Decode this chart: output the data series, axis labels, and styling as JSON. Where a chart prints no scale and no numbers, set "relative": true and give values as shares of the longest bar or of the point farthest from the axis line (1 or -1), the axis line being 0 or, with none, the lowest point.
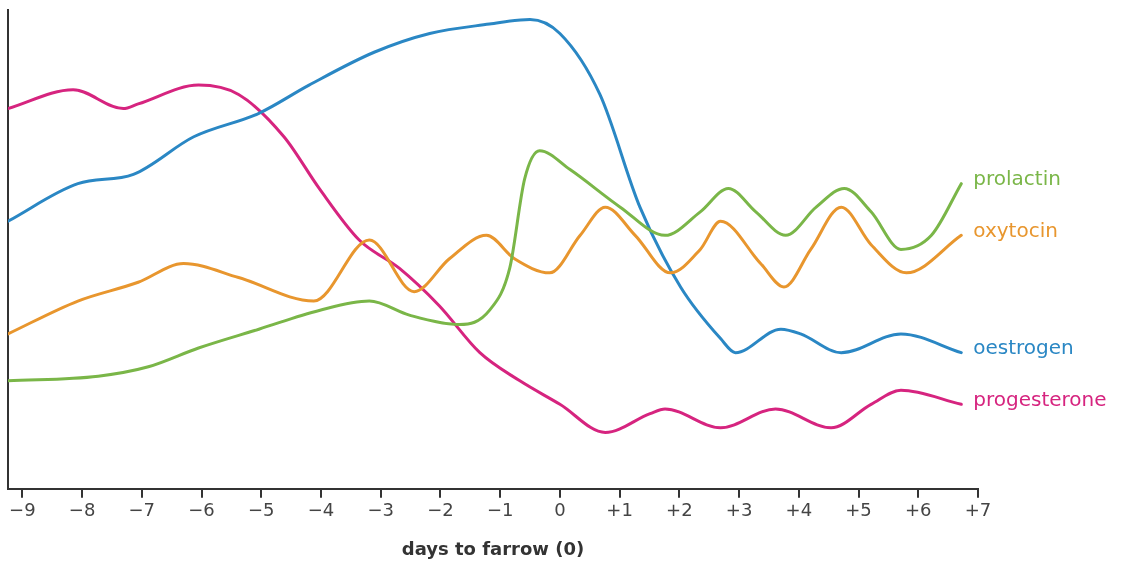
{
  "chart_data": {
    "type": "line",
    "relative": true,
    "xlabel": "days to farrow (0)",
    "xlim": [
      -9.24,
      7
    ],
    "xticks": [
      {
        "value": -9,
        "label": "−9"
      },
      {
        "value": -8,
        "label": "−8"
      },
      {
        "value": -7,
        "label": "−7"
      },
      {
        "value": -6,
        "label": "−6"
      },
      {
        "value": -5,
        "label": "−5"
      },
      {
        "value": -4,
        "label": "−4"
      },
      {
        "value": -3,
        "label": "−3"
      },
      {
        "value": -2,
        "label": "−2"
      },
      {
        "value": -1,
        "label": "−1"
      },
      0,
      {
        "value": 1,
        "label": "+1"
      },
      {
        "value": 2,
        "label": "+2"
      },
      {
        "value": 3,
        "label": "+3"
      },
      {
        "value": 4,
        "label": "+4"
      },
      {
        "value": 5,
        "label": "+5"
      },
      {
        "value": 6,
        "label": "+6"
      },
      {
        "value": 7,
        "label": "+7"
      }
    ],
    "grid": false,
    "legend": false,
    "marker": "none",
    "line_style": "solid",
    "tick_labels": "x",
    "series": [
      {
        "name": "prolactin",
        "color": "#7ab648",
        "x": [
          -9.24,
          -7.73,
          -6.89,
          -6.05,
          -5.04,
          -4.03,
          -3.19,
          -2.52,
          -1.68,
          -1.18,
          -0.84,
          -0.59,
          -0.34,
          0.17,
          1.01,
          1.76,
          2.35,
          2.82,
          3.28,
          3.78,
          4.29,
          4.76,
          5.21,
          5.71,
          6.22,
          6.72
        ],
        "values": [
          0.23,
          0.24,
          0.26,
          0.3,
          0.34,
          0.38,
          0.4,
          0.37,
          0.35,
          0.38,
          0.47,
          0.66,
          0.72,
          0.68,
          0.6,
          0.54,
          0.59,
          0.64,
          0.59,
          0.54,
          0.6,
          0.64,
          0.59,
          0.51,
          0.54,
          0.65
        ]
      },
      {
        "name": "oxytocin",
        "color": "#e8962e",
        "x": [
          -9.24,
          -8.07,
          -7.06,
          -6.3,
          -5.38,
          -4.12,
          -3.19,
          -2.44,
          -1.85,
          -1.23,
          -0.76,
          -0.17,
          0.34,
          0.76,
          1.26,
          1.85,
          2.35,
          2.69,
          3.36,
          3.75,
          4.2,
          4.71,
          5.21,
          5.8,
          6.72
        ],
        "values": [
          0.33,
          0.4,
          0.44,
          0.48,
          0.45,
          0.4,
          0.53,
          0.42,
          0.49,
          0.54,
          0.49,
          0.46,
          0.54,
          0.6,
          0.54,
          0.46,
          0.51,
          0.57,
          0.48,
          0.43,
          0.51,
          0.6,
          0.52,
          0.46,
          0.54
        ]
      },
      {
        "name": "oestrogen",
        "color": "#2a87c4",
        "x": [
          -9.24,
          -8.07,
          -7.14,
          -6.13,
          -5.04,
          -4.2,
          -3.11,
          -2.18,
          -1.18,
          -0.5,
          0,
          0.67,
          1.34,
          2.02,
          2.69,
          2.94,
          3.7,
          4.03,
          4.71,
          5.71,
          6.72
        ],
        "values": [
          0.57,
          0.65,
          0.67,
          0.75,
          0.8,
          0.86,
          0.93,
          0.97,
          0.99,
          1.0,
          0.97,
          0.84,
          0.6,
          0.43,
          0.32,
          0.29,
          0.34,
          0.33,
          0.29,
          0.33,
          0.29
        ]
      },
      {
        "name": "progesterone",
        "color": "#d6247f",
        "x": [
          -9.24,
          -8.15,
          -7.31,
          -7.06,
          -6.05,
          -5.38,
          -4.62,
          -4.03,
          -3.36,
          -2.69,
          -2.02,
          -1.34,
          -0.67,
          0,
          0.76,
          1.51,
          1.76,
          2.69,
          3.61,
          4.54,
          5.21,
          5.71,
          6.72
        ],
        "values": [
          0.81,
          0.85,
          0.81,
          0.82,
          0.86,
          0.84,
          0.75,
          0.64,
          0.53,
          0.47,
          0.39,
          0.29,
          0.23,
          0.18,
          0.12,
          0.16,
          0.17,
          0.13,
          0.17,
          0.13,
          0.18,
          0.21,
          0.18
        ]
      }
    ]
  }
}
